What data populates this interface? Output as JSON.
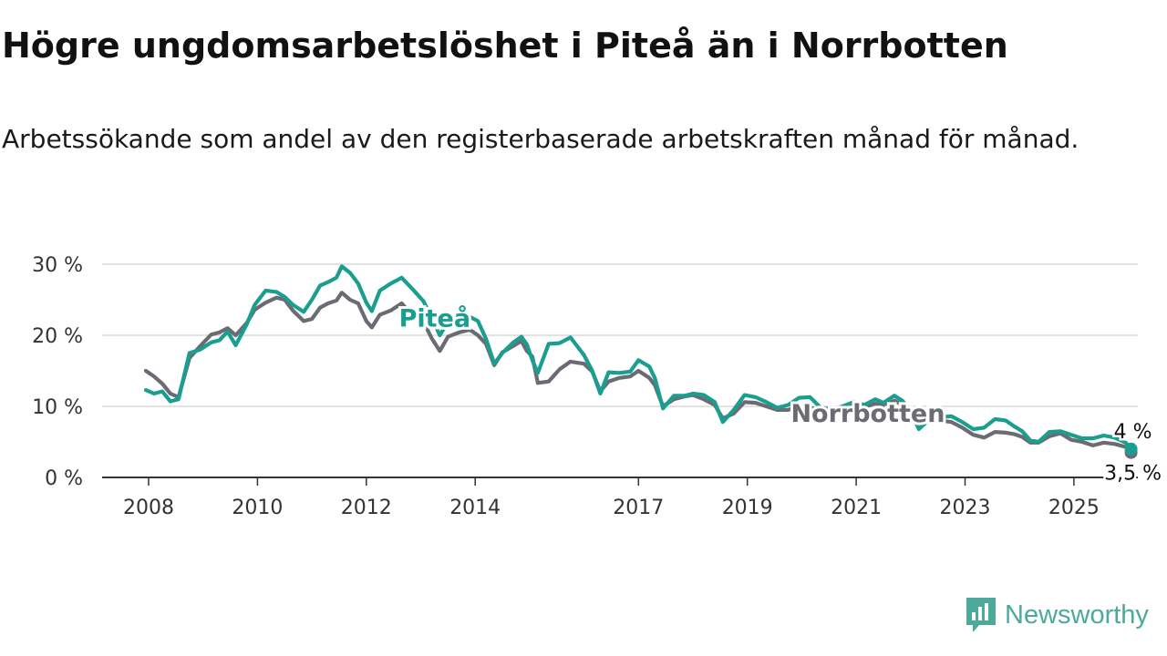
{
  "header": {
    "title": "Högre ungdomsarbetslöshet i Piteå än i Norrbotten",
    "subtitle": "Arbetssökande som andel av den registerbaserade arbetskraften månad för månad."
  },
  "brand": {
    "name": "Newsworthy",
    "icon": "newsworthy-logo-icon"
  },
  "colors": {
    "pitea": "#1a9e8f",
    "norrbotten": "#6b6b73",
    "grid": "#d9d9d9",
    "axis": "#333333",
    "text": "#333333"
  },
  "chart_data": {
    "type": "line",
    "title": "Högre ungdomsarbetslöshet i Piteå än i Norrbotten",
    "subtitle": "Arbetssökande som andel av den registerbaserade arbetskraften månad för månad.",
    "xlabel": "",
    "ylabel": "",
    "xlim": [
      2007.5,
      2026.2
    ],
    "ylim": [
      0,
      30
    ],
    "y_ticks": [
      0,
      10,
      20,
      30
    ],
    "y_tick_labels": [
      "0 %",
      "10 %",
      "20 %",
      "30 %"
    ],
    "x_ticks": [
      2008,
      2010,
      2012,
      2014,
      2017,
      2019,
      2021,
      2023,
      2025
    ],
    "x_tick_labels": [
      "2008",
      "2010",
      "2012",
      "2014",
      "2017",
      "2019",
      "2021",
      "2023",
      "2025"
    ],
    "grid": true,
    "legend": "inline labels",
    "series": [
      {
        "name": "Piteå",
        "label_position": [
          2012.6,
          21.2
        ],
        "end_label": "4 %",
        "points": [
          [
            2007.95,
            12.3
          ],
          [
            2008.1,
            11.8
          ],
          [
            2008.25,
            12.1
          ],
          [
            2008.4,
            10.7
          ],
          [
            2008.55,
            11.0
          ],
          [
            2008.75,
            17.5
          ],
          [
            2008.95,
            18.0
          ],
          [
            2009.15,
            19.0
          ],
          [
            2009.3,
            19.3
          ],
          [
            2009.45,
            20.5
          ],
          [
            2009.6,
            18.6
          ],
          [
            2009.8,
            21.5
          ],
          [
            2009.95,
            24.3
          ],
          [
            2010.15,
            26.3
          ],
          [
            2010.35,
            26.1
          ],
          [
            2010.5,
            25.4
          ],
          [
            2010.65,
            24.3
          ],
          [
            2010.85,
            23.3
          ],
          [
            2011.0,
            25.0
          ],
          [
            2011.15,
            27.0
          ],
          [
            2011.3,
            27.5
          ],
          [
            2011.45,
            28.1
          ],
          [
            2011.55,
            29.7
          ],
          [
            2011.7,
            28.8
          ],
          [
            2011.85,
            27.3
          ],
          [
            2012.0,
            24.6
          ],
          [
            2012.1,
            23.4
          ],
          [
            2012.25,
            26.3
          ],
          [
            2012.45,
            27.3
          ],
          [
            2012.65,
            28.1
          ],
          [
            2012.85,
            26.5
          ],
          [
            2013.05,
            24.8
          ],
          [
            2013.2,
            22.5
          ],
          [
            2013.35,
            20.0
          ],
          [
            2013.5,
            21.9
          ],
          [
            2013.7,
            22.2
          ],
          [
            2013.9,
            22.6
          ],
          [
            2014.05,
            22.0
          ],
          [
            2014.2,
            19.5
          ],
          [
            2014.35,
            16.0
          ],
          [
            2014.5,
            17.5
          ],
          [
            2014.7,
            19.0
          ],
          [
            2014.85,
            19.8
          ],
          [
            2014.95,
            18.7
          ],
          [
            2015.05,
            16.5
          ],
          [
            2015.15,
            14.7
          ],
          [
            2015.35,
            18.8
          ],
          [
            2015.55,
            18.9
          ],
          [
            2015.75,
            19.7
          ],
          [
            2016.0,
            17.2
          ],
          [
            2016.15,
            15.0
          ],
          [
            2016.3,
            11.8
          ],
          [
            2016.45,
            14.8
          ],
          [
            2016.65,
            14.7
          ],
          [
            2016.85,
            14.9
          ],
          [
            2017.0,
            16.5
          ],
          [
            2017.2,
            15.6
          ],
          [
            2017.3,
            14.0
          ],
          [
            2017.45,
            9.7
          ],
          [
            2017.65,
            11.5
          ],
          [
            2017.85,
            11.5
          ],
          [
            2018.0,
            11.8
          ],
          [
            2018.2,
            11.6
          ],
          [
            2018.4,
            10.6
          ],
          [
            2018.55,
            7.8
          ],
          [
            2018.75,
            9.5
          ],
          [
            2018.95,
            11.6
          ],
          [
            2019.15,
            11.3
          ],
          [
            2019.35,
            10.6
          ],
          [
            2019.55,
            9.8
          ],
          [
            2019.75,
            10.2
          ],
          [
            2019.95,
            11.2
          ],
          [
            2020.15,
            11.3
          ],
          [
            2020.35,
            9.8
          ],
          [
            2020.55,
            9.6
          ],
          [
            2020.75,
            10.0
          ],
          [
            2020.95,
            10.6
          ],
          [
            2021.15,
            10.2
          ],
          [
            2021.35,
            11.0
          ],
          [
            2021.5,
            10.5
          ],
          [
            2021.7,
            11.5
          ],
          [
            2021.85,
            10.8
          ],
          [
            2022.0,
            9.4
          ],
          [
            2022.15,
            6.8
          ],
          [
            2022.35,
            8.2
          ],
          [
            2022.55,
            8.5
          ],
          [
            2022.75,
            8.6
          ],
          [
            2022.95,
            7.8
          ],
          [
            2023.15,
            6.8
          ],
          [
            2023.35,
            7.0
          ],
          [
            2023.55,
            8.2
          ],
          [
            2023.75,
            8.0
          ],
          [
            2023.9,
            7.2
          ],
          [
            2024.05,
            6.5
          ],
          [
            2024.2,
            5.2
          ],
          [
            2024.35,
            5.0
          ],
          [
            2024.55,
            6.4
          ],
          [
            2024.75,
            6.5
          ],
          [
            2024.95,
            6.0
          ],
          [
            2025.15,
            5.5
          ],
          [
            2025.35,
            5.5
          ],
          [
            2025.55,
            5.9
          ],
          [
            2025.75,
            5.6
          ],
          [
            2025.95,
            4.9
          ],
          [
            2026.05,
            4.0
          ]
        ]
      },
      {
        "name": "Norrbotten",
        "label_position": [
          2019.8,
          7.8
        ],
        "end_label": "3,5 %",
        "points": [
          [
            2007.95,
            15.0
          ],
          [
            2008.1,
            14.2
          ],
          [
            2008.25,
            13.2
          ],
          [
            2008.4,
            11.8
          ],
          [
            2008.55,
            11.3
          ],
          [
            2008.75,
            16.8
          ],
          [
            2008.95,
            18.5
          ],
          [
            2009.15,
            20.1
          ],
          [
            2009.3,
            20.4
          ],
          [
            2009.45,
            21.0
          ],
          [
            2009.6,
            20.0
          ],
          [
            2009.8,
            21.7
          ],
          [
            2009.95,
            23.6
          ],
          [
            2010.15,
            24.6
          ],
          [
            2010.35,
            25.3
          ],
          [
            2010.5,
            25.0
          ],
          [
            2010.65,
            23.5
          ],
          [
            2010.85,
            22.0
          ],
          [
            2011.0,
            22.3
          ],
          [
            2011.15,
            23.9
          ],
          [
            2011.3,
            24.5
          ],
          [
            2011.45,
            24.9
          ],
          [
            2011.55,
            26.0
          ],
          [
            2011.7,
            25.0
          ],
          [
            2011.85,
            24.5
          ],
          [
            2012.0,
            22.0
          ],
          [
            2012.1,
            21.1
          ],
          [
            2012.25,
            22.9
          ],
          [
            2012.45,
            23.5
          ],
          [
            2012.65,
            24.5
          ],
          [
            2012.85,
            22.7
          ],
          [
            2013.05,
            21.9
          ],
          [
            2013.2,
            19.6
          ],
          [
            2013.35,
            17.8
          ],
          [
            2013.5,
            19.8
          ],
          [
            2013.7,
            20.4
          ],
          [
            2013.9,
            20.8
          ],
          [
            2014.05,
            20.0
          ],
          [
            2014.2,
            18.8
          ],
          [
            2014.35,
            15.8
          ],
          [
            2014.5,
            17.6
          ],
          [
            2014.7,
            18.5
          ],
          [
            2014.85,
            19.2
          ],
          [
            2014.95,
            17.8
          ],
          [
            2015.05,
            17.0
          ],
          [
            2015.15,
            13.3
          ],
          [
            2015.35,
            13.5
          ],
          [
            2015.55,
            15.2
          ],
          [
            2015.75,
            16.3
          ],
          [
            2016.0,
            16.0
          ],
          [
            2016.15,
            14.9
          ],
          [
            2016.3,
            12.1
          ],
          [
            2016.45,
            13.5
          ],
          [
            2016.65,
            14.0
          ],
          [
            2016.85,
            14.2
          ],
          [
            2017.0,
            15.0
          ],
          [
            2017.2,
            14.0
          ],
          [
            2017.3,
            13.0
          ],
          [
            2017.45,
            10.0
          ],
          [
            2017.65,
            11.0
          ],
          [
            2017.85,
            11.4
          ],
          [
            2018.0,
            11.6
          ],
          [
            2018.2,
            11.0
          ],
          [
            2018.4,
            10.2
          ],
          [
            2018.55,
            8.3
          ],
          [
            2018.75,
            9.0
          ],
          [
            2018.95,
            10.6
          ],
          [
            2019.15,
            10.5
          ],
          [
            2019.35,
            10.0
          ],
          [
            2019.55,
            9.5
          ],
          [
            2019.75,
            9.5
          ],
          [
            2019.95,
            10.0
          ],
          [
            2020.15,
            9.8
          ],
          [
            2020.35,
            9.5
          ],
          [
            2020.55,
            9.6
          ],
          [
            2020.75,
            9.8
          ],
          [
            2020.95,
            10.0
          ],
          [
            2021.15,
            9.9
          ],
          [
            2021.35,
            10.4
          ],
          [
            2021.5,
            10.1
          ],
          [
            2021.7,
            10.8
          ],
          [
            2021.85,
            10.2
          ],
          [
            2022.0,
            9.0
          ],
          [
            2022.15,
            7.3
          ],
          [
            2022.35,
            7.9
          ],
          [
            2022.55,
            8.0
          ],
          [
            2022.75,
            7.8
          ],
          [
            2022.95,
            7.0
          ],
          [
            2023.15,
            6.0
          ],
          [
            2023.35,
            5.6
          ],
          [
            2023.55,
            6.4
          ],
          [
            2023.75,
            6.3
          ],
          [
            2023.9,
            6.1
          ],
          [
            2024.05,
            5.7
          ],
          [
            2024.2,
            4.9
          ],
          [
            2024.35,
            4.9
          ],
          [
            2024.55,
            5.8
          ],
          [
            2024.75,
            6.2
          ],
          [
            2024.95,
            5.3
          ],
          [
            2025.15,
            5.0
          ],
          [
            2025.35,
            4.5
          ],
          [
            2025.55,
            4.9
          ],
          [
            2025.75,
            4.7
          ],
          [
            2025.95,
            4.3
          ],
          [
            2026.05,
            3.5
          ]
        ]
      }
    ]
  }
}
